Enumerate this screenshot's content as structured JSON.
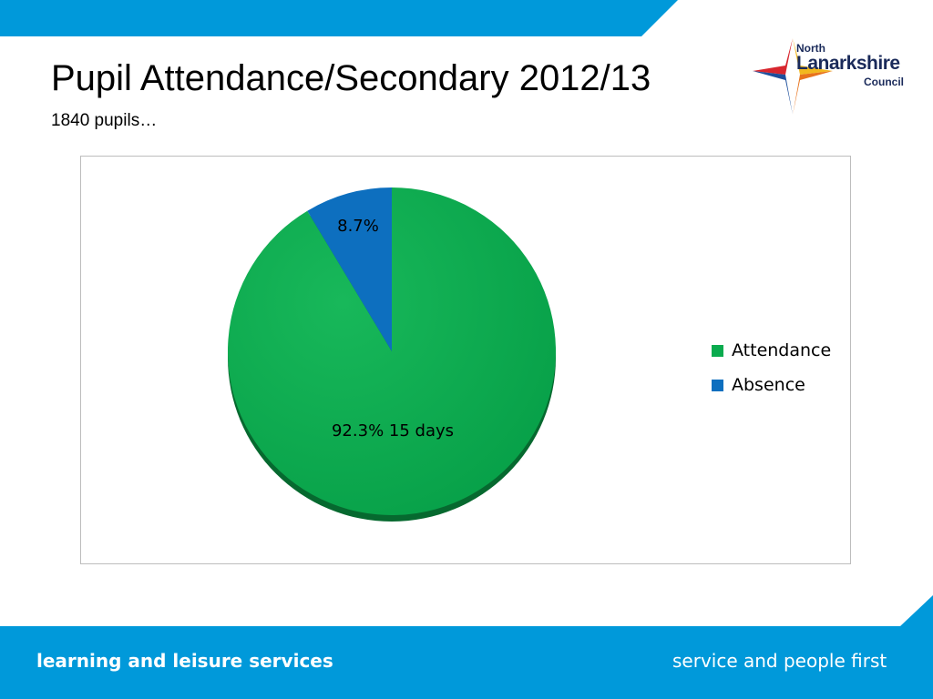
{
  "slide": {
    "title": "Pupil Attendance/Secondary 2012/13",
    "subtitle": "1840 pupils…"
  },
  "logo": {
    "line1": "North",
    "line2": "Lanarkshire",
    "line3": "Council"
  },
  "footer": {
    "left_text": "learning and leisure services",
    "right_text": "service and people first"
  },
  "colors": {
    "band_blue": "#0099da",
    "attendance_green": "#0aab4e",
    "absence_blue": "#0d6fbf"
  },
  "chart_data": {
    "type": "pie",
    "legend_position": "right",
    "slices": [
      {
        "name": "Attendance",
        "value": 92.3,
        "label": "92.3% 15 days",
        "color": "#0aab4e"
      },
      {
        "name": "Absence",
        "value": 8.7,
        "label": "8.7%",
        "color": "#0d6fbf"
      }
    ]
  }
}
